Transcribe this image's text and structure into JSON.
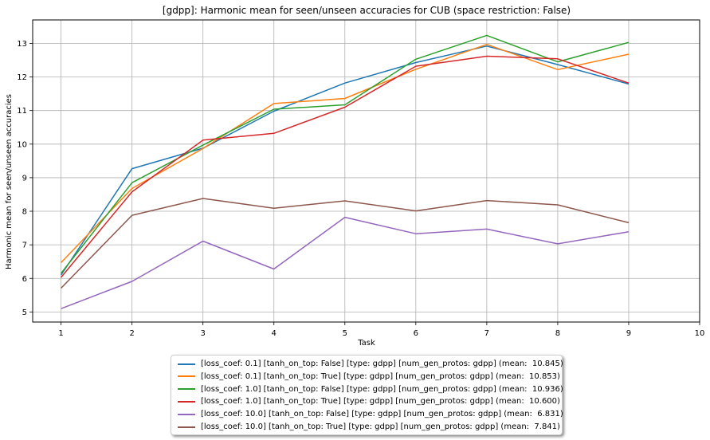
{
  "chart_data": {
    "type": "line",
    "title": "[gdpp]: Harmonic mean for seen/unseen accuracies for CUB (space restriction: False)",
    "xlabel": "Task",
    "ylabel": "Harmonic mean for seen/unseen accuracies",
    "xlim": [
      0.6,
      10
    ],
    "ylim": [
      4.7,
      13.7
    ],
    "xticks": [
      "1",
      "2",
      "3",
      "4",
      "5",
      "6",
      "7",
      "8",
      "9",
      "10"
    ],
    "yticks": [
      "5",
      "6",
      "7",
      "8",
      "9",
      "10",
      "11",
      "12",
      "13"
    ],
    "grid": true,
    "legend_position": "below",
    "x": [
      1,
      2,
      3,
      4,
      5,
      6,
      7,
      8,
      9
    ],
    "series": [
      {
        "name": "[loss_coef: 0.1] [tanh_on_top: False] [type: gdpp] [num_gen_protos: gdpp] (mean:  10.845)",
        "color": "#1f77b4",
        "values": [
          6.1,
          9.27,
          9.88,
          10.98,
          11.82,
          12.43,
          12.92,
          12.37,
          11.79
        ]
      },
      {
        "name": "[loss_coef: 0.1] [tanh_on_top: True] [type: gdpp] [num_gen_protos: gdpp] (mean:  10.853)",
        "color": "#ff7f0e",
        "values": [
          6.47,
          8.68,
          9.87,
          11.21,
          11.36,
          12.23,
          12.97,
          12.22,
          12.68
        ]
      },
      {
        "name": "[loss_coef: 1.0] [tanh_on_top: False] [type: gdpp] [num_gen_protos: gdpp] (mean:  10.936)",
        "color": "#2ca02c",
        "values": [
          6.15,
          8.85,
          9.97,
          11.04,
          11.17,
          12.53,
          13.24,
          12.45,
          13.03
        ]
      },
      {
        "name": "[loss_coef: 1.0] [tanh_on_top: True] [type: gdpp] [num_gen_protos: gdpp] (mean:  10.600)",
        "color": "#d62728",
        "values": [
          6.03,
          8.58,
          10.12,
          10.32,
          11.1,
          12.32,
          12.62,
          12.54,
          11.82
        ]
      },
      {
        "name": "[loss_coef: 10.0] [tanh_on_top: False] [type: gdpp] [num_gen_protos: gdpp] (mean:  6.831)",
        "color": "#9467bd",
        "values": [
          5.1,
          5.91,
          7.11,
          6.28,
          7.82,
          7.33,
          7.47,
          7.03,
          7.39
        ]
      },
      {
        "name": "[loss_coef: 10.0] [tanh_on_top: True] [type: gdpp] [num_gen_protos: gdpp] (mean:  7.841)",
        "color": "#8c564b",
        "values": [
          5.71,
          7.88,
          8.38,
          8.09,
          8.31,
          8.01,
          8.32,
          8.19,
          7.66
        ]
      }
    ]
  }
}
